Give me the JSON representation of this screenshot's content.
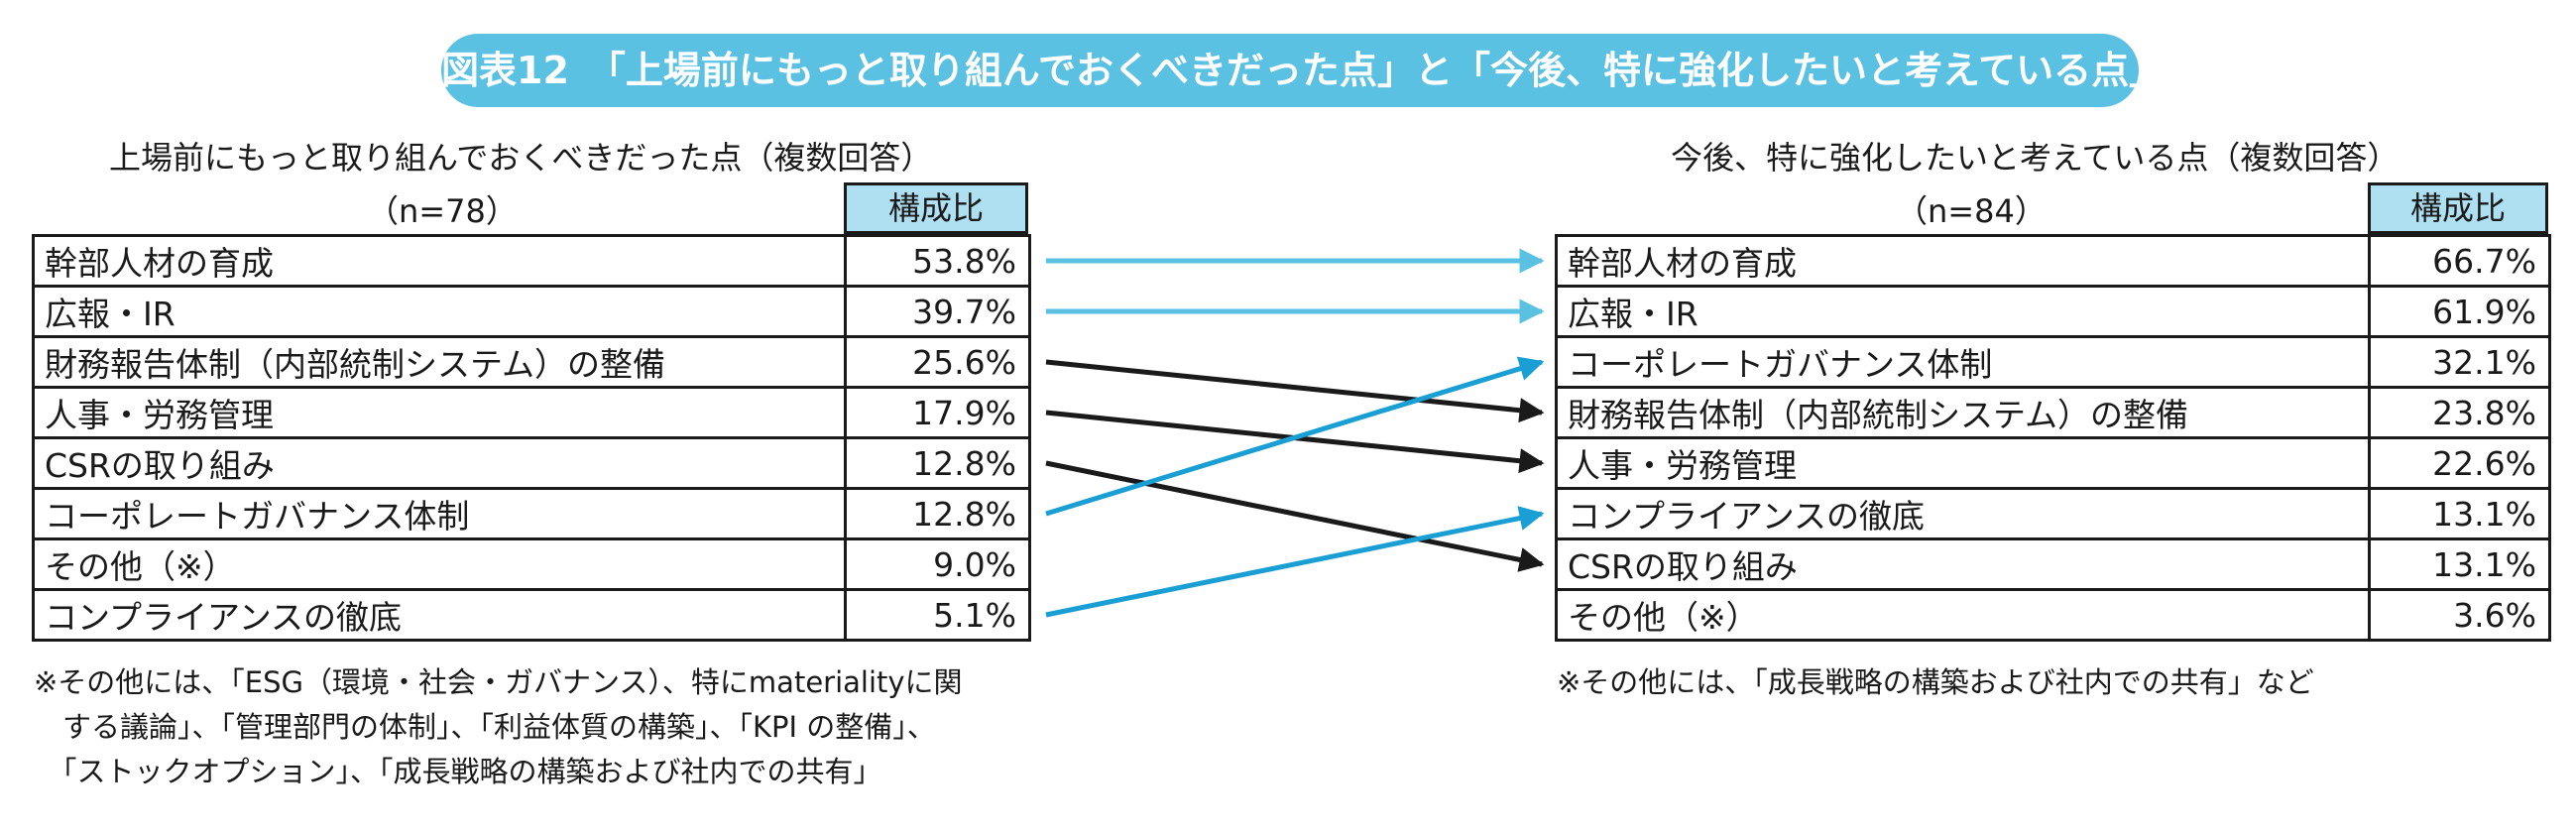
{
  "banner": {
    "title": "図表12　「上場前にもっと取り組んでおくべきだった点」と「今後、特に強化したいと考えている点」"
  },
  "colors": {
    "banner_bg": "#5bc1e3",
    "header_bg": "#aee0f2",
    "arrow_blue_light": "#5bc1e3",
    "arrow_blue": "#1a9fd4",
    "arrow_black": "#1a1a1a"
  },
  "chart_data": [
    {
      "type": "table",
      "title": "上場前にもっと取り組んでおくべきだった点（複数回答）",
      "n_label": "（n=78）",
      "column_header": "構成比",
      "rows": [
        {
          "label": "幹部人材の育成",
          "value": "53.8%"
        },
        {
          "label": "広報・IR",
          "value": "39.7%"
        },
        {
          "label": "財務報告体制（内部統制システム）の整備",
          "value": "25.6%"
        },
        {
          "label": "人事・労務管理",
          "value": "17.9%"
        },
        {
          "label": "CSRの取り組み",
          "value": "12.8%"
        },
        {
          "label": "コーポレートガバナンス体制",
          "value": "12.8%"
        },
        {
          "label": "その他（※）",
          "value": "9.0%"
        },
        {
          "label": "コンプライアンスの徹底",
          "value": "5.1%"
        }
      ],
      "notes": [
        "※その他には、「ESG（環境・社会・ガバナンス）、特にmaterialityに関",
        "　する議論」、「管理部門の体制」、「利益体質の構築」、「KPI の整備」、",
        "　「ストックオプション」、「成長戦略の構築および社内での共有」"
      ]
    },
    {
      "type": "table",
      "title": "今後、特に強化したいと考えている点（複数回答）",
      "n_label": "（n=84）",
      "column_header": "構成比",
      "rows": [
        {
          "label": "幹部人材の育成",
          "value": "66.7%"
        },
        {
          "label": "広報・IR",
          "value": "61.9%"
        },
        {
          "label": "コーポレートガバナンス体制",
          "value": "32.1%"
        },
        {
          "label": "財務報告体制（内部統制システム）の整備",
          "value": "23.8%"
        },
        {
          "label": "人事・労務管理",
          "value": "22.6%"
        },
        {
          "label": "コンプライアンスの徹底",
          "value": "13.1%"
        },
        {
          "label": "CSRの取り組み",
          "value": "13.1%"
        },
        {
          "label": "その他（※）",
          "value": "3.6%"
        }
      ],
      "notes": [
        "※その他には、「成長戦略の構築および社内での共有」など"
      ]
    }
  ],
  "arrows": [
    {
      "from": 0,
      "to": 0,
      "color": "light"
    },
    {
      "from": 1,
      "to": 1,
      "color": "light"
    },
    {
      "from": 2,
      "to": 3,
      "color": "black"
    },
    {
      "from": 3,
      "to": 4,
      "color": "black"
    },
    {
      "from": 4,
      "to": 6,
      "color": "black"
    },
    {
      "from": 5,
      "to": 2,
      "color": "blue"
    },
    {
      "from": 7,
      "to": 5,
      "color": "blue"
    }
  ]
}
